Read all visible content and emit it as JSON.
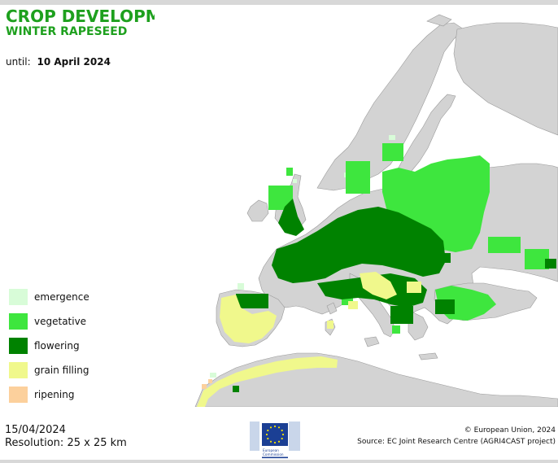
{
  "header": {
    "title": "CROP DEVELOPMENT STAGE",
    "subtitle": "WINTER RAPESEED",
    "until_label": "until:",
    "until_date": "10 April 2024"
  },
  "legend": {
    "items": [
      {
        "label": "emergence",
        "color": "#d8fcd8"
      },
      {
        "label": "vegetative",
        "color": "#3ee63e"
      },
      {
        "label": "flowering",
        "color": "#008200"
      },
      {
        "label": "grain filling",
        "color": "#f0f88c"
      },
      {
        "label": "ripening",
        "color": "#fcd09c"
      }
    ]
  },
  "map_colors": {
    "land": "#d3d3d3",
    "sea": "#ffffff",
    "border": "#9a9a9a"
  },
  "footer": {
    "date": "15/04/2024",
    "resolution": "Resolution: 25 x 25 km",
    "copyright": "© European Union, 2024",
    "source": "Source: EC Joint Research Centre (AGRI4CAST project)"
  },
  "logo": {
    "line1": "European",
    "line2": "Commission"
  }
}
